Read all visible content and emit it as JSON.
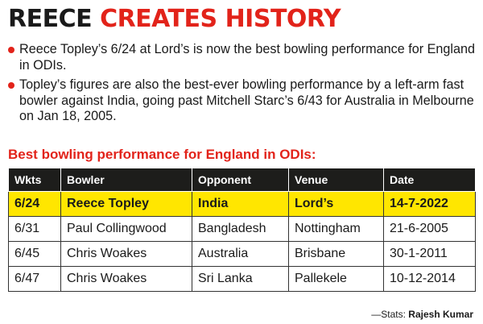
{
  "headline": {
    "part1": "REECE",
    "part2": "CREATES HISTORY"
  },
  "bullets": [
    "Reece Topley’s 6/24 at Lord’s is now the best bowling performance for England in ODIs.",
    "Topley’s figures are also the best-ever bowling performance by a left-arm fast bowler against India, going past Mitchell Starc’s 6/43 for Australia in Melbourne on Jan 18, 2005."
  ],
  "subhead": "Best bowling performance for England in ODIs:",
  "table": {
    "headers": [
      "Wkts",
      "Bowler",
      "Opponent",
      "Venue",
      "Date"
    ],
    "rows": [
      [
        "6/24",
        "Reece Topley",
        "India",
        "Lord’s",
        "14-7-2022"
      ],
      [
        "6/31",
        "Paul Collingwood",
        "Bangladesh",
        "Nottingham",
        "21-6-2005"
      ],
      [
        "6/45",
        "Chris Woakes",
        "Australia",
        "Brisbane",
        "30-1-2011"
      ],
      [
        "6/47",
        "Chris Woakes",
        "Sri Lanka",
        "Pallekele",
        "10-12-2014"
      ]
    ]
  },
  "credit": {
    "prefix": "—Stats:",
    "name": "Rajesh Kumar"
  },
  "colors": {
    "accent": "#e2231a",
    "highlight": "#ffe600",
    "header_bg": "#1d1d1b"
  }
}
